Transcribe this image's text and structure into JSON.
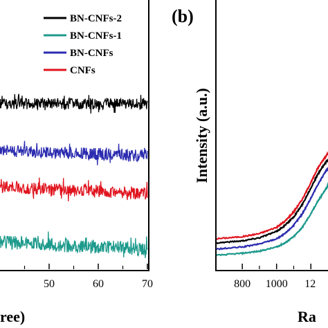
{
  "figure": {
    "panel_b_label": "(b)"
  },
  "chart_data": [
    {
      "type": "line",
      "panel": "a",
      "xlabel": "ree)",
      "x_ticks": [
        "50",
        "60",
        "70"
      ],
      "xlim": [
        40,
        70
      ],
      "legend": [
        "BN-CNFs-2",
        "BN-CNFs-1",
        "BN-CNFs",
        "CNFs"
      ],
      "legend_position": "top",
      "series": [
        {
          "name": "BN-CNFs-2",
          "color": "#000000",
          "x": [
            40,
            70
          ],
          "values": [
            150,
            150
          ],
          "noise": "high-frequency XRD background, amplitude ~8"
        },
        {
          "name": "BN-CNFs",
          "color": "#2b2bb0",
          "x": [
            40,
            70
          ],
          "values": [
            218,
            225
          ],
          "noise": "high-frequency XRD background, amplitude ~9"
        },
        {
          "name": "CNFs",
          "color": "#e0141e",
          "x": [
            40,
            70
          ],
          "values": [
            270,
            280
          ],
          "noise": "high-frequency XRD background, amplitude ~9"
        },
        {
          "name": "BN-CNFs-1",
          "color": "#1d9a8c",
          "x": [
            40,
            70
          ],
          "values": [
            350,
            360
          ],
          "noise": "high-frequency XRD background, amplitude ~10"
        }
      ],
      "y_axis_units": "arbitrary, stacked offset"
    },
    {
      "type": "line",
      "panel": "b",
      "ylabel": "Intensity (a.u.)",
      "xlabel": "Ra",
      "x_ticks": [
        "800",
        "1000",
        "12"
      ],
      "xlim": [
        650,
        1300
      ],
      "series_colors": [
        "#e0141e",
        "#000000",
        "#2b2bb0",
        "#1d9a8c"
      ],
      "series": [
        {
          "color": "#e0141e",
          "x": [
            650,
            800,
            900,
            1000,
            1050,
            1100,
            1150,
            1200,
            1240,
            1280,
            1300
          ],
          "values": [
            0.2,
            0.22,
            0.25,
            0.31,
            0.37,
            0.46,
            0.58,
            0.74,
            0.88,
            0.98,
            1.02
          ]
        },
        {
          "color": "#000000",
          "x": [
            650,
            800,
            900,
            1000,
            1050,
            1100,
            1150,
            1200,
            1240,
            1280,
            1300
          ],
          "values": [
            0.16,
            0.18,
            0.21,
            0.27,
            0.33,
            0.41,
            0.53,
            0.69,
            0.82,
            0.92,
            0.96
          ]
        },
        {
          "color": "#2b2bb0",
          "x": [
            650,
            800,
            900,
            1000,
            1050,
            1100,
            1150,
            1200,
            1240,
            1280,
            1300
          ],
          "values": [
            0.1,
            0.12,
            0.15,
            0.2,
            0.25,
            0.33,
            0.44,
            0.59,
            0.72,
            0.83,
            0.88
          ]
        },
        {
          "color": "#1d9a8c",
          "x": [
            650,
            800,
            900,
            1000,
            1050,
            1100,
            1150,
            1200,
            1240,
            1280,
            1300
          ],
          "values": [
            0.04,
            0.06,
            0.08,
            0.12,
            0.16,
            0.22,
            0.31,
            0.44,
            0.56,
            0.66,
            0.72
          ]
        }
      ]
    }
  ]
}
